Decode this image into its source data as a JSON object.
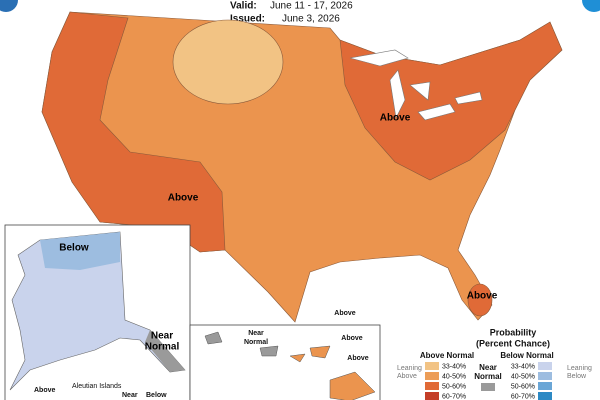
{
  "header": {
    "valid_label": "Valid:",
    "valid_value": "June 11 - 17, 2026",
    "issued_label": "Issued:",
    "issued_value": "June 3, 2026"
  },
  "map_labels": [
    "Above",
    "Above",
    "Above"
  ],
  "alaska": {
    "labels": [
      "Below",
      "Above",
      "Aleutian Islands",
      "Near",
      "Below"
    ],
    "near_normal": [
      "Near",
      "Normal"
    ]
  },
  "hawaii": {
    "near_normal": [
      "Near",
      "Normal"
    ],
    "labels": [
      "Above",
      "Above",
      "Above"
    ]
  },
  "legend": {
    "title": [
      "Probability",
      "(Percent Chance)"
    ],
    "above_header": "Above Normal",
    "below_header": "Below Normal",
    "near": [
      "Near",
      "Normal"
    ],
    "leaning_above": [
      "Leaning",
      "Above"
    ],
    "leaning_below": [
      "Leaning",
      "Below"
    ],
    "above_levels": [
      {
        "label": "33-40%",
        "color": "#f2c384"
      },
      {
        "label": "40-50%",
        "color": "#ec9d58"
      },
      {
        "label": "50-60%",
        "color": "#e06a37"
      },
      {
        "label": "60-70%",
        "color": "#c43e28"
      }
    ],
    "below_levels": [
      {
        "label": "33-40%",
        "color": "#c9d3ec"
      },
      {
        "label": "40-50%",
        "color": "#9dbde0"
      },
      {
        "label": "50-60%",
        "color": "#6aa6d6"
      },
      {
        "label": "60-70%",
        "color": "#2c89c4"
      }
    ],
    "near_color": "#9a9a9a"
  }
}
